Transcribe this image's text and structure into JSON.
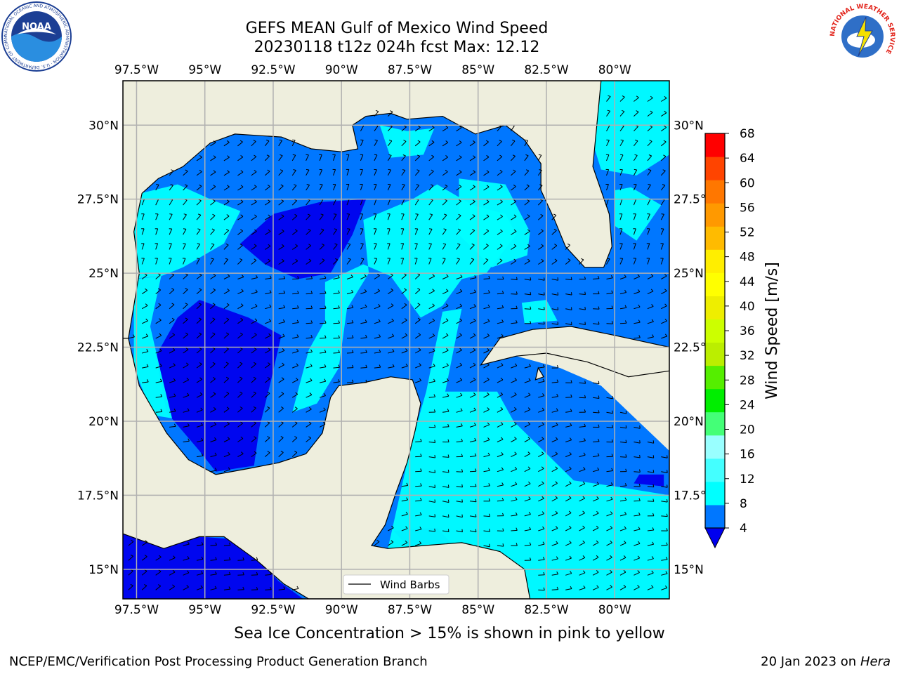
{
  "header": {
    "title_line1": "GEFS MEAN Gulf of Mexico Wind Speed",
    "title_line2": "20230118 t12z 024h fcst   Max: 12.12"
  },
  "logos": {
    "noaa_text": "NOAA",
    "nws_ring_text": "NATIONAL WEATHER SERVICE",
    "noaa_ring_text": "NATIONAL OCEANIC AND ATMOSPHERIC ADMINISTRATION · U.S. DEPARTMENT OF COMMERCE"
  },
  "map": {
    "lon_labels": [
      "97.5°W",
      "95°W",
      "92.5°W",
      "90°W",
      "87.5°W",
      "85°W",
      "82.5°W",
      "80°W"
    ],
    "lat_labels": [
      "30°N",
      "27.5°N",
      "25°N",
      "22.5°N",
      "20°N",
      "17.5°N",
      "15°N"
    ],
    "lon_values": [
      -97.5,
      -95,
      -92.5,
      -90,
      -87.5,
      -85,
      -82.5,
      -80
    ],
    "lat_values": [
      30,
      27.5,
      25,
      22.5,
      20,
      17.5,
      15
    ],
    "extent": {
      "lon_min": -98,
      "lon_max": -78,
      "lat_min": 14,
      "lat_max": 31.5
    },
    "legend_label": "Wind Barbs",
    "colors": {
      "land": "#eeeedd",
      "grid": "#b0b0b0"
    }
  },
  "colorbar": {
    "label": "Wind Speed [m/s]",
    "ticks": [
      "4",
      "8",
      "12",
      "16",
      "20",
      "24",
      "28",
      "32",
      "36",
      "40",
      "44",
      "48",
      "52",
      "56",
      "60",
      "64",
      "68"
    ],
    "colors": [
      "#0077ff",
      "#00ffff",
      "#44ffff",
      "#99ffff",
      "#44ff77",
      "#00ee00",
      "#55ee00",
      "#bbee00",
      "#ccff00",
      "#eeee00",
      "#ffff00",
      "#ffee00",
      "#ffbb00",
      "#ff9900",
      "#ff7700",
      "#ff4400",
      "#ff0000"
    ],
    "under_color": "#0000ee"
  },
  "footer": {
    "note": "Sea Ice Concentration > 15% is shown in pink to yellow",
    "left": "NCEP/EMC/Verification Post Processing Product Generation Branch",
    "right_date": "20 Jan 2023 on ",
    "right_host": "Hera"
  }
}
